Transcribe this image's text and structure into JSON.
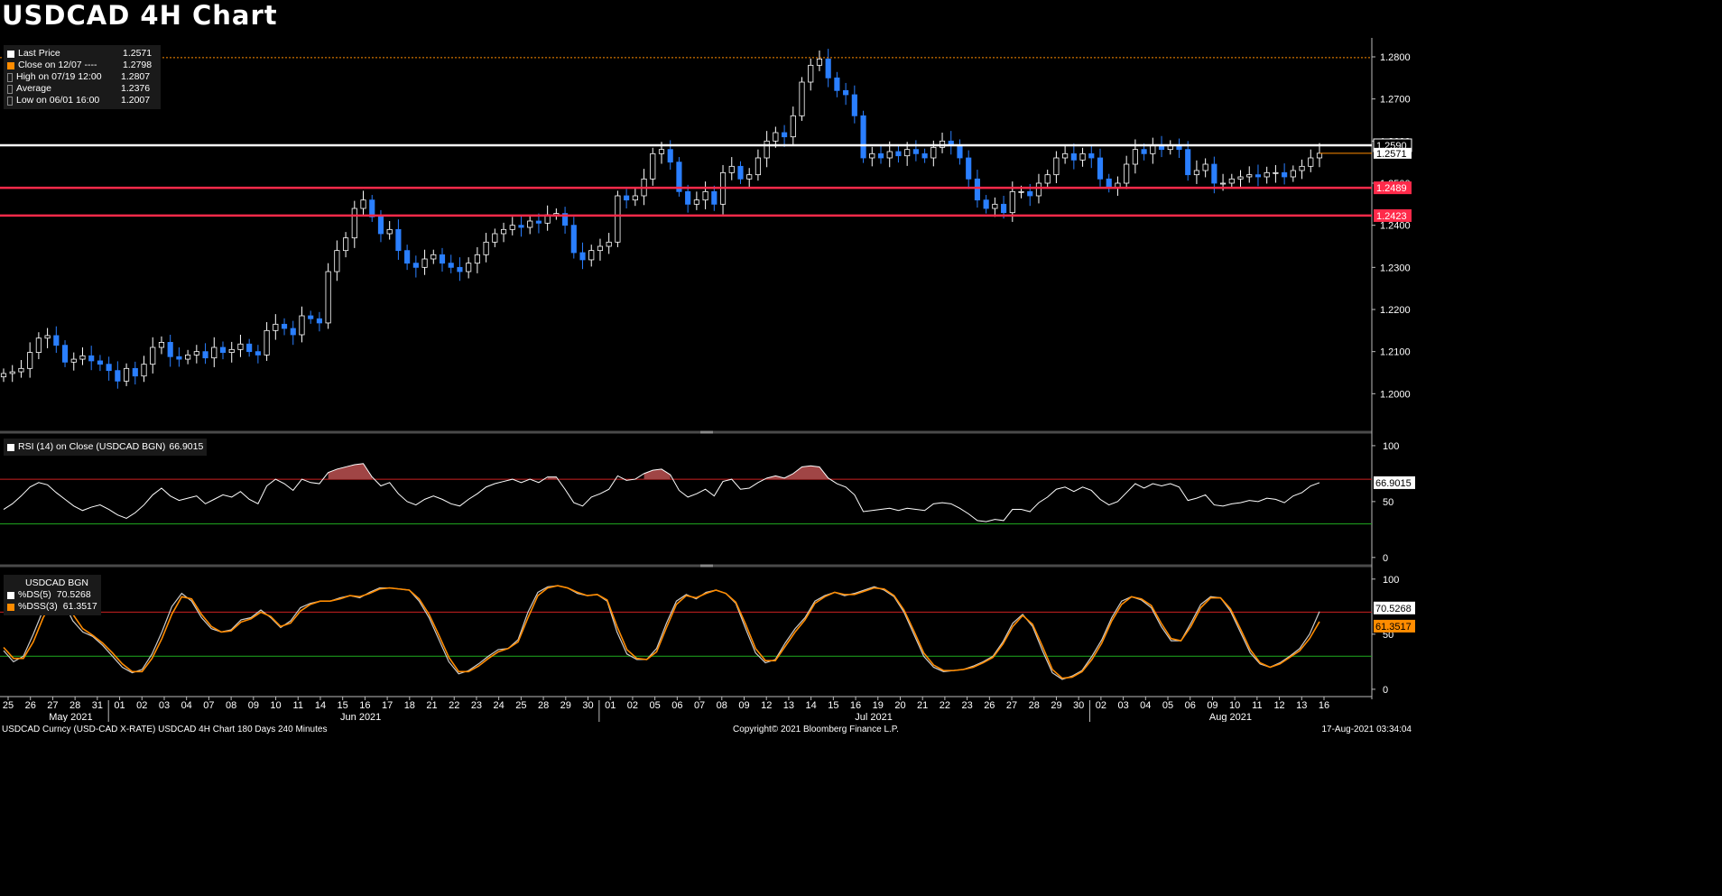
{
  "title": "USDCAD 4H Chart",
  "price_legend": {
    "items": [
      {
        "label": "Last Price",
        "value": "1.2571",
        "color": "#ffffff"
      },
      {
        "label": "Close on 12/07 ----",
        "value": "1.2798",
        "color": "#ff8c00"
      },
      {
        "label": "High on 07/19 12:00",
        "value": "1.2807",
        "color": "#888888"
      },
      {
        "label": "Average",
        "value": "1.2376",
        "color": "#888888"
      },
      {
        "label": "Low on 06/01 16:00",
        "value": "1.2007",
        "color": "#888888"
      }
    ]
  },
  "rsi_legend": {
    "label": "RSI (14)  on Close (USDCAD BGN)",
    "value": "66.9015"
  },
  "stoch_legend": {
    "title": "USDCAD BGN",
    "items": [
      {
        "label": "%DS(5)",
        "value": "70.5268",
        "color": "#ffffff"
      },
      {
        "label": "%DSS(3)",
        "value": "61.3517",
        "color": "#ff8c00"
      }
    ]
  },
  "footer": {
    "left": "USDCAD Curncy (USD-CAD X-RATE) USDCAD 4H Chart 180 Days 240 Minutes",
    "middle": "Copyright© 2021 Bloomberg Finance L.P.",
    "right": "17-Aug-2021 03:34:04"
  },
  "colors": {
    "up": "#ffffff",
    "down": "#2a7fff",
    "support": "#ff2a4a",
    "resistance": "#ffffff",
    "prev_close": "#ff8c00",
    "overbought": "#cc2222",
    "oversold": "#1faa1f"
  },
  "chart_data": [
    {
      "type": "candlestick",
      "title": "USDCAD 4H Chart",
      "ylim": [
        1.1915,
        1.2845
      ],
      "y_ticks": [
        "1.2800",
        "1.2700",
        "1.2600",
        "1.2500",
        "1.2400",
        "1.2300",
        "1.2200",
        "1.2100",
        "1.2000"
      ],
      "x_day_labels": [
        "25",
        "26",
        "27",
        "28",
        "31",
        "01",
        "02",
        "03",
        "04",
        "07",
        "08",
        "09",
        "10",
        "11",
        "14",
        "15",
        "16",
        "17",
        "18",
        "21",
        "22",
        "23",
        "24",
        "25",
        "28",
        "29",
        "30",
        "01",
        "02",
        "05",
        "06",
        "07",
        "08",
        "09",
        "12",
        "13",
        "14",
        "15",
        "16",
        "19",
        "20",
        "21",
        "22",
        "23",
        "26",
        "27",
        "28",
        "29",
        "30",
        "02",
        "03",
        "04",
        "05",
        "06",
        "09",
        "10",
        "11",
        "12",
        "13",
        "16"
      ],
      "x_month_labels": [
        {
          "label": "May 2021",
          "day_index": 2
        },
        {
          "label": "Jun 2021",
          "day_index": 15
        },
        {
          "label": "Jul 2021",
          "day_index": 38
        },
        {
          "label": "Aug 2021",
          "day_index": 54
        }
      ],
      "closes": [
        1.2048,
        1.2052,
        1.206,
        1.2098,
        1.2132,
        1.2138,
        1.2115,
        1.2075,
        1.2082,
        1.209,
        1.2078,
        1.207,
        1.2055,
        1.203,
        1.206,
        1.2042,
        1.207,
        1.211,
        1.2122,
        1.2088,
        1.2082,
        1.2092,
        1.21,
        1.2085,
        1.211,
        1.2098,
        1.2105,
        1.2118,
        1.21,
        1.2092,
        1.215,
        1.2165,
        1.2155,
        1.214,
        1.2185,
        1.2178,
        1.2168,
        1.229,
        1.234,
        1.237,
        1.244,
        1.246,
        1.242,
        1.238,
        1.239,
        1.234,
        1.231,
        1.23,
        1.232,
        1.233,
        1.231,
        1.23,
        1.229,
        1.231,
        1.233,
        1.236,
        1.238,
        1.239,
        1.24,
        1.2395,
        1.241,
        1.2405,
        1.2425,
        1.2428,
        1.24,
        1.2335,
        1.2318,
        1.234,
        1.235,
        1.236,
        1.247,
        1.246,
        1.247,
        1.251,
        1.257,
        1.258,
        1.255,
        1.248,
        1.245,
        1.246,
        1.248,
        1.245,
        1.2525,
        1.254,
        1.251,
        1.252,
        1.256,
        1.26,
        1.262,
        1.261,
        1.266,
        1.274,
        1.278,
        1.2795,
        1.275,
        1.272,
        1.271,
        1.266,
        1.256,
        1.257,
        1.256,
        1.2575,
        1.2565,
        1.258,
        1.257,
        1.256,
        1.2585,
        1.26,
        1.259,
        1.256,
        1.251,
        1.246,
        1.244,
        1.245,
        1.243,
        1.248,
        1.248,
        1.247,
        1.25,
        1.252,
        1.256,
        1.257,
        1.2555,
        1.257,
        1.256,
        1.251,
        1.249,
        1.25,
        1.2545,
        1.258,
        1.257,
        1.259,
        1.258,
        1.259,
        1.258,
        1.252,
        1.253,
        1.2545,
        1.25,
        1.25,
        1.251,
        1.2515,
        1.252,
        1.2515,
        1.2525,
        1.2525,
        1.2515,
        1.253,
        1.254,
        1.256,
        1.2571
      ],
      "levels": [
        {
          "label": "1.2590",
          "value": 1.259,
          "role": "resistance"
        },
        {
          "label": "1.2571",
          "value": 1.2571,
          "role": "last"
        },
        {
          "label": "1.2489",
          "value": 1.2489,
          "role": "support"
        },
        {
          "label": "1.2423",
          "value": 1.2423,
          "role": "support"
        },
        {
          "value": 1.2798,
          "role": "prev_close"
        }
      ]
    },
    {
      "type": "line",
      "title": "RSI (14)",
      "ylim": [
        -5,
        108
      ],
      "y_ticks": [
        "100",
        "50",
        "0"
      ],
      "overbought": 70,
      "oversold": 30,
      "last_label": "66.9015",
      "series": [
        {
          "name": "RSI (14)",
          "values": [
            43,
            48,
            55,
            63,
            67,
            65,
            58,
            52,
            46,
            42,
            45,
            47,
            43,
            38,
            35,
            40,
            47,
            56,
            62,
            55,
            51,
            53,
            55,
            48,
            52,
            56,
            54,
            59,
            52,
            48,
            64,
            70,
            66,
            60,
            70,
            67,
            66,
            76,
            79,
            81,
            83,
            84,
            72,
            64,
            67,
            57,
            50,
            47,
            52,
            55,
            52,
            48,
            46,
            52,
            57,
            63,
            66,
            68,
            70,
            67,
            70,
            67,
            72,
            72,
            61,
            49,
            46,
            54,
            57,
            61,
            73,
            69,
            70,
            75,
            78,
            79,
            74,
            60,
            54,
            57,
            61,
            55,
            68,
            70,
            61,
            62,
            67,
            71,
            73,
            71,
            75,
            81,
            82,
            81,
            71,
            66,
            63,
            56,
            41,
            42,
            43,
            44,
            42,
            44,
            43,
            42,
            48,
            49,
            48,
            44,
            39,
            33,
            32,
            34,
            33,
            43,
            43,
            41,
            49,
            54,
            61,
            63,
            59,
            63,
            60,
            52,
            47,
            50,
            58,
            66,
            62,
            66,
            64,
            66,
            63,
            51,
            53,
            56,
            47,
            46,
            48,
            49,
            51,
            50,
            53,
            52,
            49,
            55,
            58,
            64,
            66.9
          ]
        }
      ]
    },
    {
      "type": "line",
      "title": "USDCAD BGN",
      "ylim": [
        -5,
        108
      ],
      "y_ticks": [
        "100",
        "50",
        "0"
      ],
      "overbought": 70,
      "oversold": 30,
      "last_labels": [
        "70.5268",
        "61.3517"
      ],
      "series": [
        {
          "name": "%DS(5)",
          "values": [
            35,
            25,
            30,
            50,
            72,
            83,
            80,
            62,
            52,
            48,
            40,
            30,
            20,
            15,
            18,
            32,
            52,
            75,
            87,
            80,
            65,
            55,
            52,
            54,
            63,
            65,
            72,
            65,
            56,
            62,
            74,
            78,
            80,
            80,
            83,
            85,
            83,
            88,
            92,
            92,
            91,
            90,
            80,
            65,
            45,
            25,
            14,
            17,
            23,
            30,
            36,
            37,
            45,
            70,
            88,
            93,
            94,
            92,
            87,
            85,
            86,
            80,
            52,
            32,
            27,
            27,
            37,
            60,
            80,
            86,
            82,
            88,
            90,
            87,
            78,
            55,
            33,
            24,
            27,
            42,
            55,
            65,
            80,
            85,
            88,
            85,
            87,
            90,
            93,
            90,
            84,
            70,
            50,
            30,
            20,
            16,
            17,
            18,
            21,
            25,
            30,
            43,
            60,
            68,
            57,
            35,
            15,
            9,
            12,
            17,
            30,
            45,
            65,
            80,
            84,
            81,
            74,
            57,
            44,
            44,
            60,
            77,
            84,
            83,
            71,
            52,
            33,
            23,
            20,
            24,
            30,
            37,
            50,
            70.5
          ]
        },
        {
          "name": "%DSS(3)",
          "values": [
            38,
            28,
            28,
            43,
            65,
            80,
            82,
            68,
            55,
            49,
            42,
            33,
            23,
            16,
            16,
            28,
            46,
            68,
            84,
            82,
            68,
            57,
            52,
            53,
            61,
            64,
            70,
            66,
            57,
            60,
            71,
            77,
            80,
            80,
            82,
            85,
            84,
            87,
            91,
            92,
            91,
            90,
            82,
            68,
            49,
            29,
            16,
            16,
            21,
            28,
            34,
            37,
            43,
            65,
            85,
            92,
            94,
            92,
            88,
            85,
            86,
            81,
            57,
            36,
            28,
            27,
            34,
            56,
            77,
            85,
            83,
            87,
            90,
            87,
            79,
            59,
            37,
            26,
            26,
            39,
            52,
            63,
            78,
            84,
            88,
            86,
            86,
            89,
            92,
            91,
            85,
            72,
            53,
            33,
            22,
            17,
            17,
            18,
            20,
            24,
            29,
            41,
            57,
            67,
            59,
            39,
            18,
            10,
            11,
            16,
            27,
            42,
            62,
            77,
            84,
            82,
            76,
            60,
            46,
            44,
            57,
            74,
            83,
            83,
            73,
            55,
            36,
            24,
            20,
            23,
            29,
            35,
            46,
            61.4
          ]
        }
      ]
    }
  ]
}
